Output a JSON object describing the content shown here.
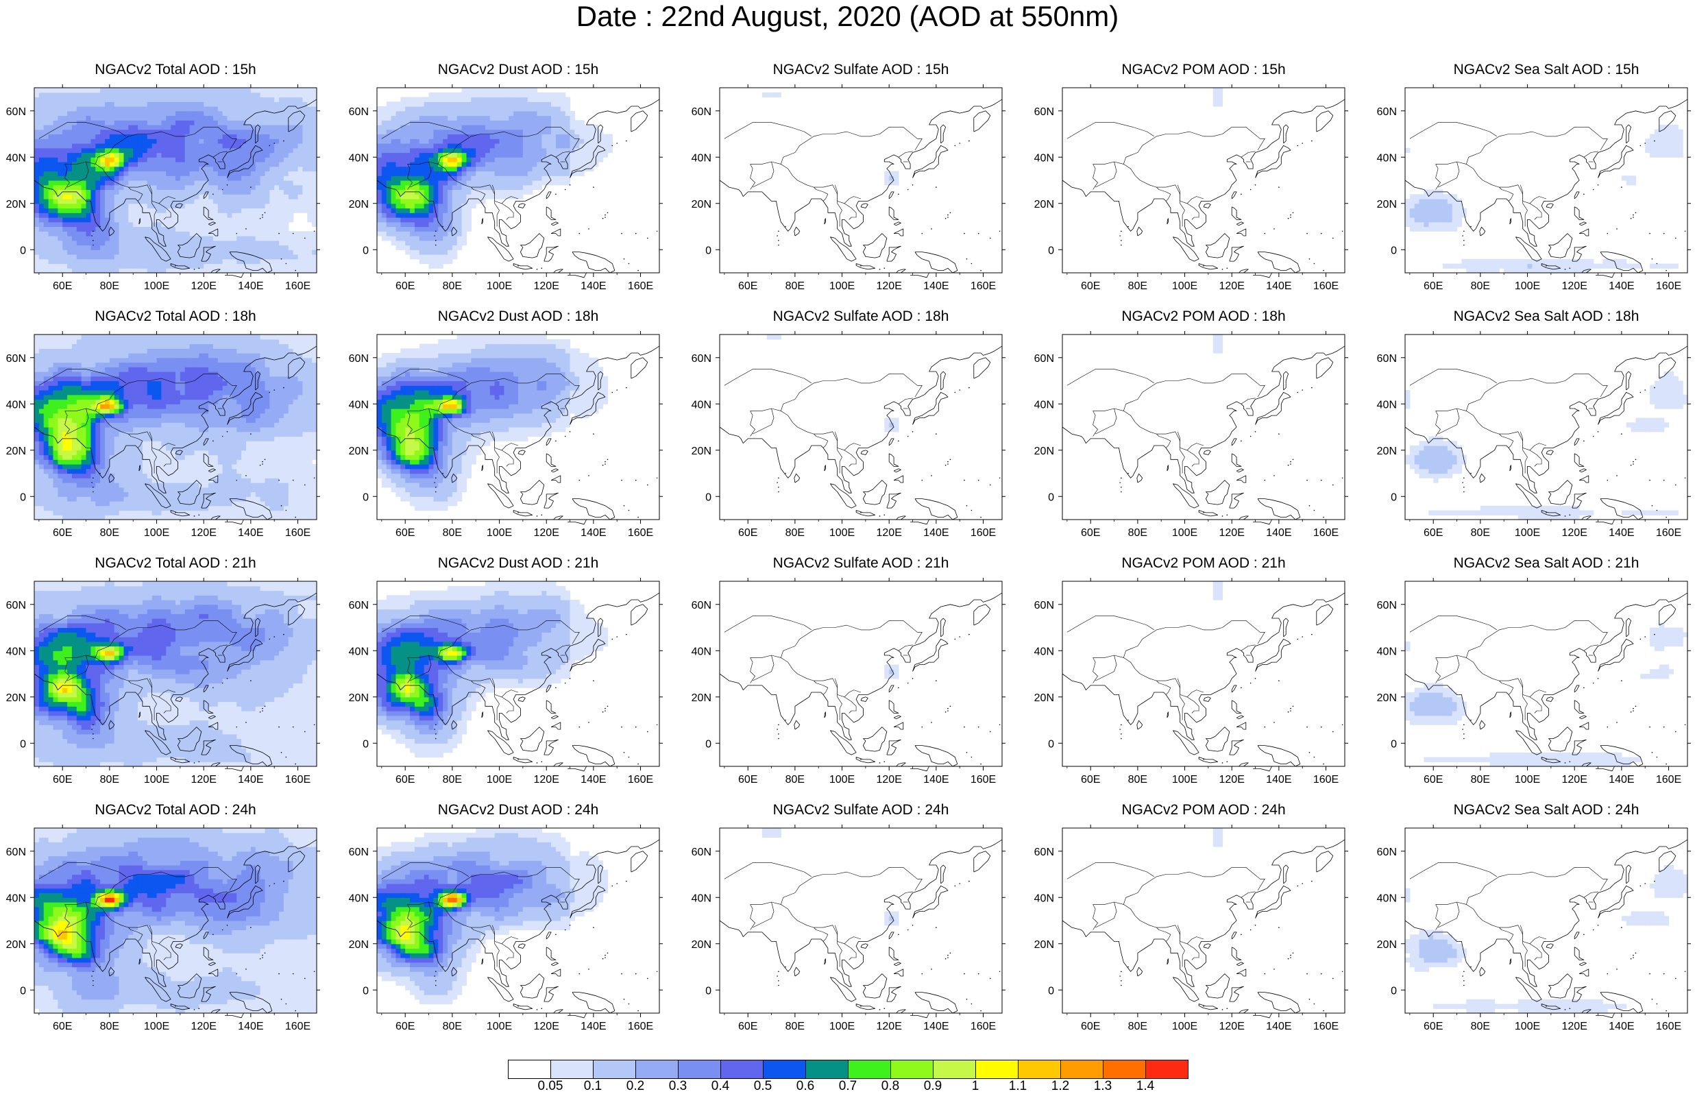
{
  "title": "Date : 22nd August, 2020 (AOD at 550nm)",
  "map": {
    "lon_ticks": [
      "60E",
      "80E",
      "100E",
      "120E",
      "140E",
      "160E"
    ],
    "lat_ticks": [
      "60N",
      "40N",
      "20N",
      "0"
    ],
    "lon_range": [
      48,
      168
    ],
    "lat_range": [
      -10,
      70
    ]
  },
  "panels": [
    {
      "row": 0,
      "col": 0,
      "title": "NGACv2 Total AOD : 15h",
      "species": "total"
    },
    {
      "row": 0,
      "col": 1,
      "title": "NGACv2 Dust AOD : 15h",
      "species": "dust"
    },
    {
      "row": 0,
      "col": 2,
      "title": "NGACv2 Sulfate AOD : 15h",
      "species": "sulfate"
    },
    {
      "row": 0,
      "col": 3,
      "title": "NGACv2 POM AOD : 15h",
      "species": "pom"
    },
    {
      "row": 0,
      "col": 4,
      "title": "NGACv2 Sea Salt AOD : 15h",
      "species": "seasalt"
    },
    {
      "row": 1,
      "col": 0,
      "title": "NGACv2 Total AOD : 18h",
      "species": "total"
    },
    {
      "row": 1,
      "col": 1,
      "title": "NGACv2 Dust AOD : 18h",
      "species": "dust"
    },
    {
      "row": 1,
      "col": 2,
      "title": "NGACv2 Sulfate AOD : 18h",
      "species": "sulfate"
    },
    {
      "row": 1,
      "col": 3,
      "title": "NGACv2 POM AOD : 18h",
      "species": "pom"
    },
    {
      "row": 1,
      "col": 4,
      "title": "NGACv2 Sea Salt AOD : 18h",
      "species": "seasalt"
    },
    {
      "row": 2,
      "col": 0,
      "title": "NGACv2 Total AOD : 21h",
      "species": "total"
    },
    {
      "row": 2,
      "col": 1,
      "title": "NGACv2 Dust AOD : 21h",
      "species": "dust"
    },
    {
      "row": 2,
      "col": 2,
      "title": "NGACv2 Sulfate AOD : 21h",
      "species": "sulfate"
    },
    {
      "row": 2,
      "col": 3,
      "title": "NGACv2 POM AOD : 21h",
      "species": "pom"
    },
    {
      "row": 2,
      "col": 4,
      "title": "NGACv2 Sea Salt AOD : 21h",
      "species": "seasalt"
    },
    {
      "row": 3,
      "col": 0,
      "title": "NGACv2 Total AOD : 24h",
      "species": "total"
    },
    {
      "row": 3,
      "col": 1,
      "title": "NGACv2 Dust AOD : 24h",
      "species": "dust"
    },
    {
      "row": 3,
      "col": 2,
      "title": "NGACv2 Sulfate AOD : 24h",
      "species": "sulfate"
    },
    {
      "row": 3,
      "col": 3,
      "title": "NGACv2 POM AOD : 24h",
      "species": "pom"
    },
    {
      "row": 3,
      "col": 4,
      "title": "NGACv2 Sea Salt  AOD : 24h",
      "species": "seasalt"
    }
  ],
  "colorbar": {
    "labels": [
      "0.05",
      "0.1",
      "0.2",
      "0.3",
      "0.4",
      "0.5",
      "0.6",
      "0.7",
      "0.8",
      "0.9",
      "1",
      "1.1",
      "1.2",
      "1.3",
      "1.4"
    ],
    "colors": [
      "#ffffff",
      "#d9e3fb",
      "#b4c8f8",
      "#95acf5",
      "#7a8ff2",
      "#6066ee",
      "#0b57f0",
      "#069186",
      "#3ef01c",
      "#8ef91b",
      "#c6f847",
      "#fffd00",
      "#ffc800",
      "#ff9d00",
      "#ff6f00",
      "#ff2a12"
    ]
  }
}
